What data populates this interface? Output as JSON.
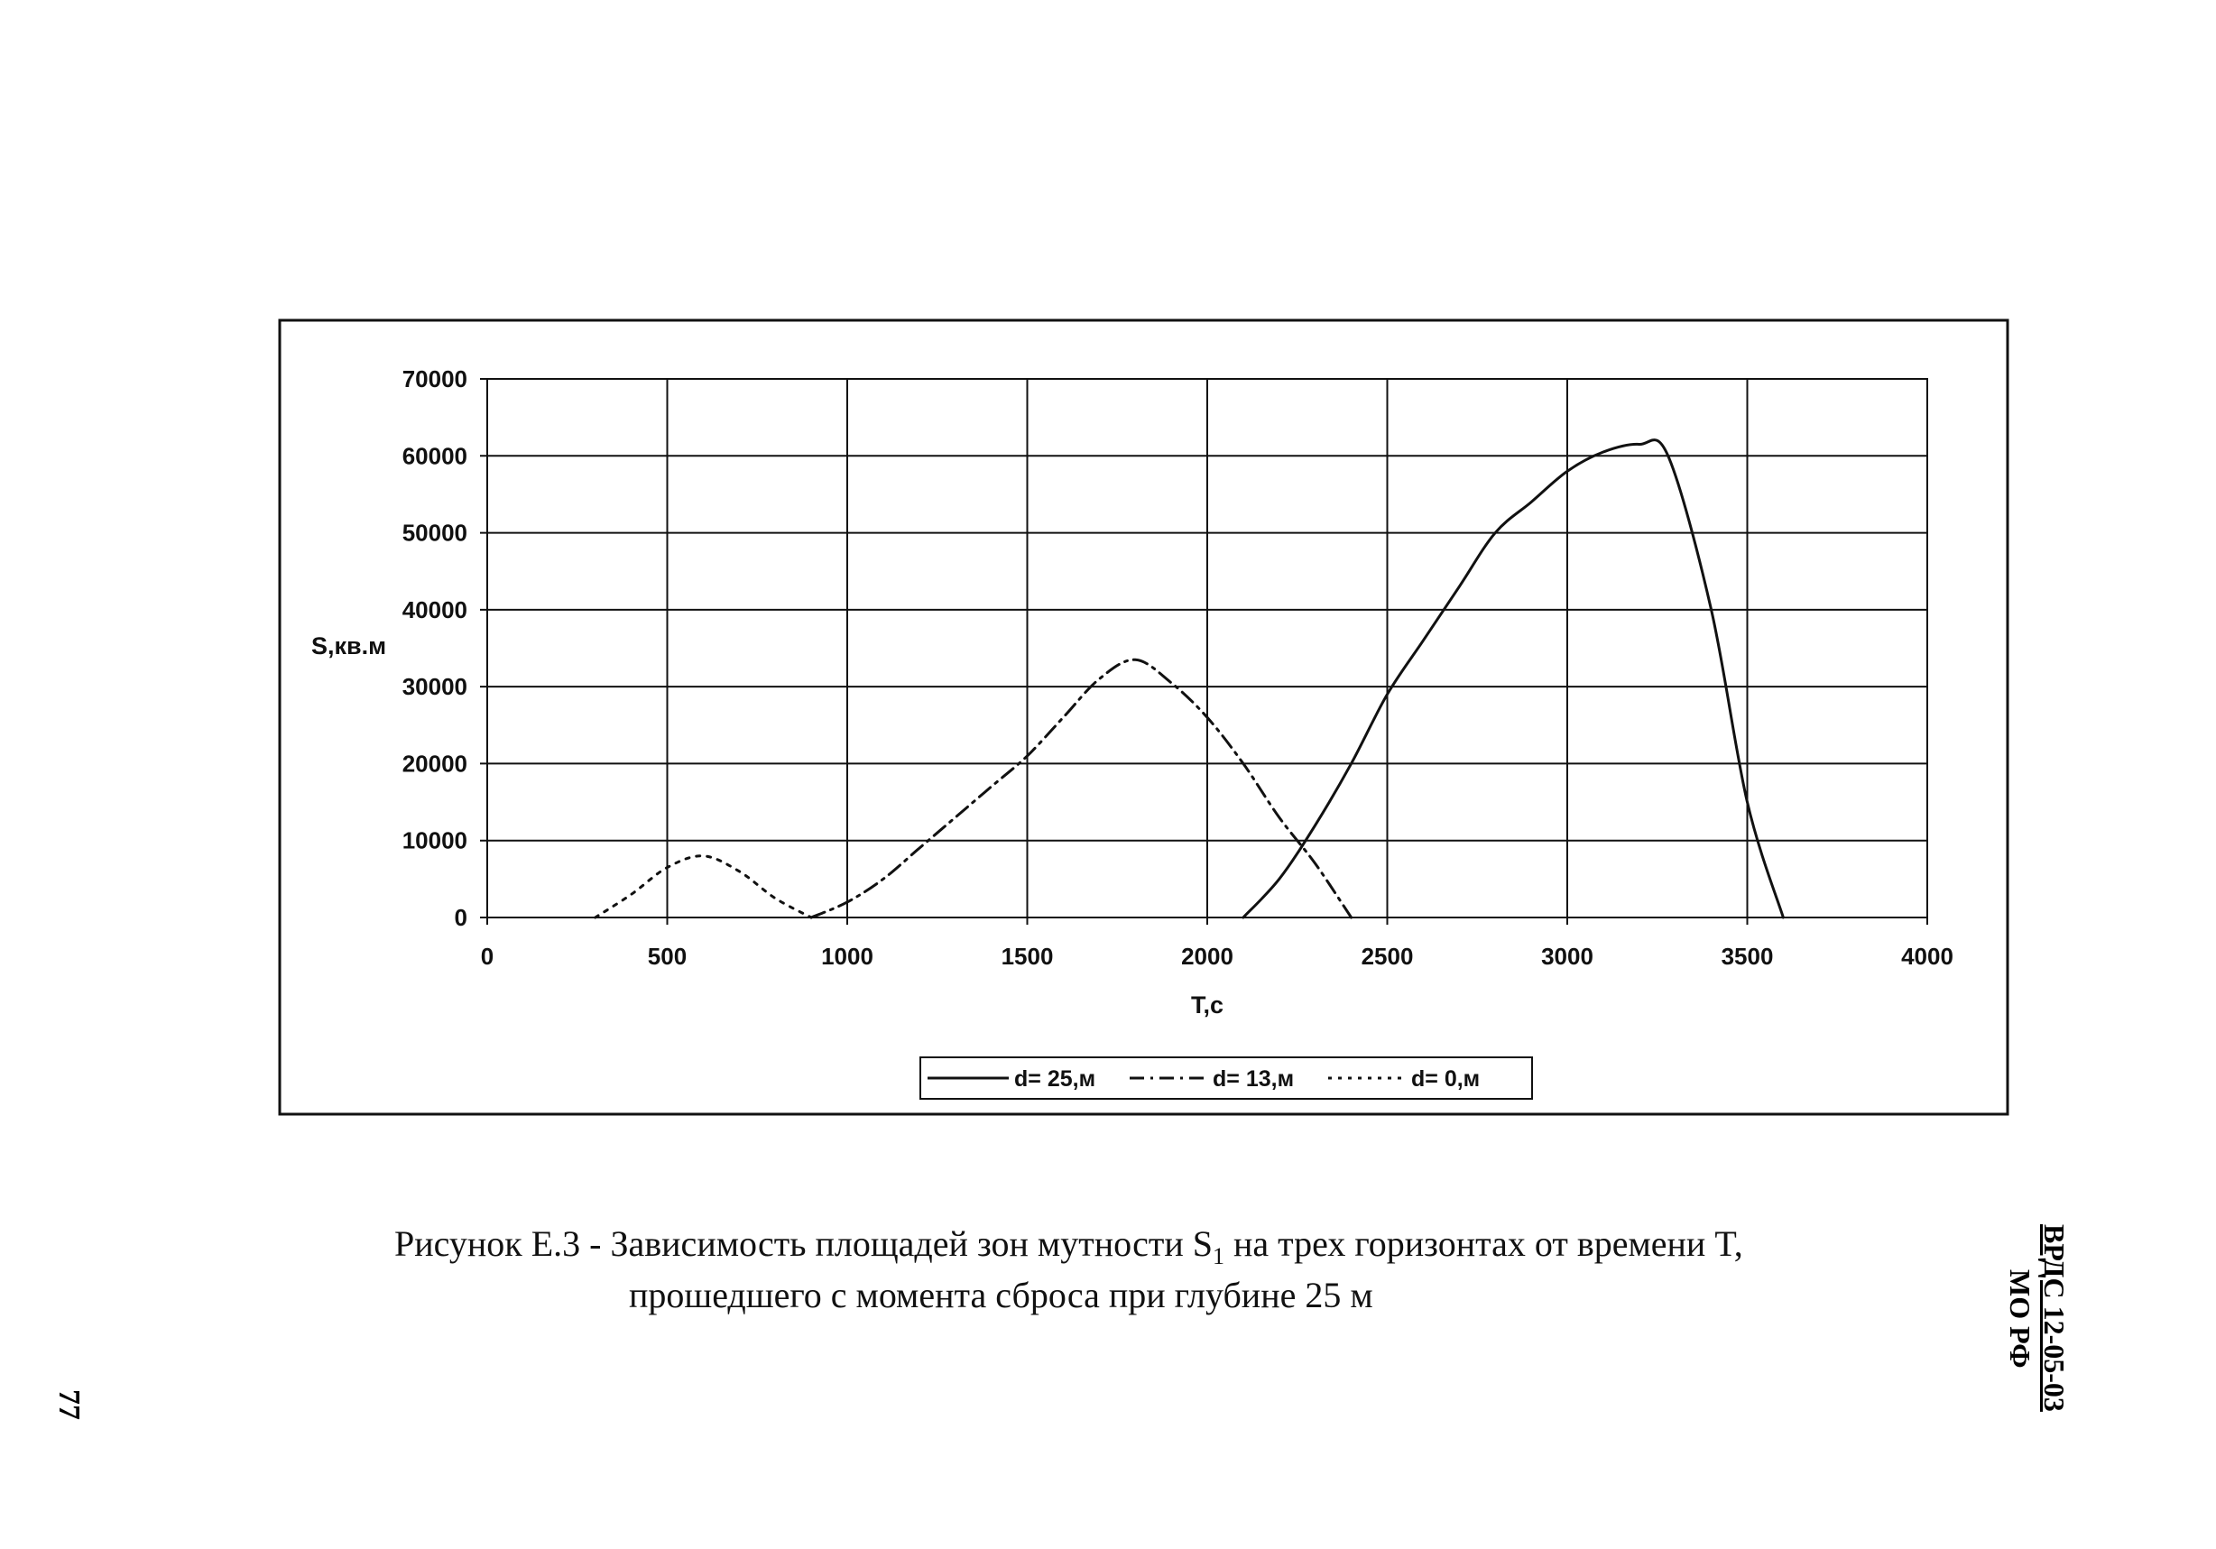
{
  "chart_data": {
    "type": "line",
    "xlabel": "T,c",
    "ylabel": "S,кв.м",
    "xlim": [
      0,
      4000
    ],
    "ylim": [
      0,
      70000
    ],
    "x_ticks": [
      0,
      500,
      1000,
      1500,
      2000,
      2500,
      3000,
      3500,
      4000
    ],
    "y_ticks": [
      0,
      10000,
      20000,
      30000,
      40000,
      50000,
      60000,
      70000
    ],
    "grid": true,
    "legend_position": "bottom",
    "series": [
      {
        "name": "d= 25,м",
        "style": "solid",
        "points": [
          [
            2100,
            0
          ],
          [
            2200,
            5000
          ],
          [
            2300,
            12000
          ],
          [
            2400,
            20000
          ],
          [
            2500,
            29000
          ],
          [
            2600,
            36000
          ],
          [
            2700,
            43000
          ],
          [
            2800,
            50000
          ],
          [
            2900,
            54000
          ],
          [
            3000,
            58000
          ],
          [
            3100,
            60500
          ],
          [
            3200,
            61500
          ],
          [
            3280,
            60000
          ],
          [
            3400,
            40000
          ],
          [
            3500,
            15000
          ],
          [
            3600,
            0
          ]
        ]
      },
      {
        "name": "d= 13,м",
        "style": "dashdot",
        "points": [
          [
            900,
            0
          ],
          [
            1000,
            2000
          ],
          [
            1100,
            5000
          ],
          [
            1200,
            9000
          ],
          [
            1300,
            13000
          ],
          [
            1400,
            17000
          ],
          [
            1500,
            21000
          ],
          [
            1600,
            26000
          ],
          [
            1700,
            31000
          ],
          [
            1800,
            33500
          ],
          [
            1900,
            30500
          ],
          [
            2000,
            26000
          ],
          [
            2100,
            20000
          ],
          [
            2200,
            13000
          ],
          [
            2300,
            7000
          ],
          [
            2400,
            0
          ]
        ]
      },
      {
        "name": "d= 0,м",
        "style": "dotted",
        "points": [
          [
            300,
            0
          ],
          [
            400,
            3000
          ],
          [
            500,
            6500
          ],
          [
            600,
            8000
          ],
          [
            700,
            6000
          ],
          [
            800,
            2500
          ],
          [
            900,
            0
          ]
        ]
      }
    ]
  },
  "caption": {
    "line1": "Рисунок Е.3 - Зависимость площадей зон мутности S",
    "line1_sub": "1",
    "line1_tail": " на трех горизонтах от времени T,",
    "line2": "прошедшего с момента сброса при глубине 25 м"
  },
  "side_stamp": {
    "line1": "ВРДС 12-05-03",
    "line2": "МО РФ"
  },
  "page_number": "77"
}
